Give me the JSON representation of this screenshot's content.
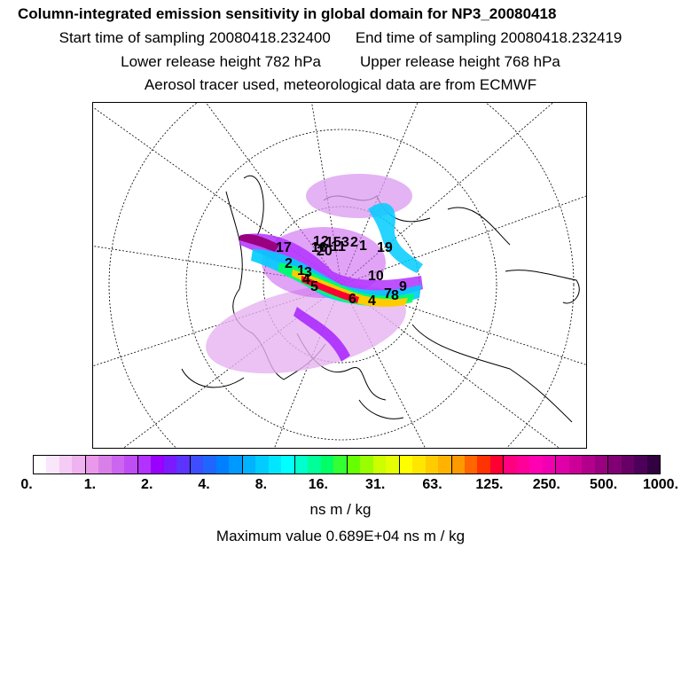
{
  "title": "Column-integrated emission sensitivity in global domain for NP3_20080418",
  "sampling": {
    "start": "Start time of sampling 20080418.232400",
    "end": "End time of sampling 20080418.232419"
  },
  "release": {
    "lower": "Lower release height  782 hPa",
    "upper": "Upper release height  768 hPa"
  },
  "note": "Aerosol tracer used, meteorological data are from ECMWF",
  "map": {
    "labels": [
      "12",
      "20",
      "15",
      "3",
      "2",
      "1",
      "17",
      "2",
      "1",
      "3",
      "4",
      "5",
      "6",
      "4",
      "7",
      "8",
      "9",
      "10",
      "11",
      "16",
      "19"
    ]
  },
  "colorbar": {
    "colors": [
      "#ffffff",
      "#fae6fa",
      "#f5ccf5",
      "#efb3ef",
      "#e999e9",
      "#d980e8",
      "#cc66f0",
      "#bf4df5",
      "#b233ff",
      "#9900ff",
      "#7a1aff",
      "#5c33ff",
      "#3d4dff",
      "#1f66ff",
      "#0080ff",
      "#0099ff",
      "#00b3ff",
      "#00ccff",
      "#00e6ff",
      "#00ffff",
      "#00ffcc",
      "#00ff99",
      "#00ff66",
      "#33ff33",
      "#66ff00",
      "#99ff00",
      "#ccff00",
      "#e6ff00",
      "#ffff00",
      "#ffe600",
      "#ffcc00",
      "#ffb300",
      "#ff9900",
      "#ff6600",
      "#ff3300",
      "#ff0033",
      "#ff0080",
      "#ff0099",
      "#ff00b3",
      "#f000b0",
      "#e000a8",
      "#cc0099",
      "#b3008c",
      "#990080",
      "#800073",
      "#660066",
      "#4d0059",
      "#330040"
    ],
    "major_every": 4,
    "tick_labels": [
      "0.",
      "1.",
      "2.",
      "4.",
      "8.",
      "16.",
      "31.",
      "63.",
      "125.",
      "250.",
      "500.",
      "1000."
    ],
    "units": "ns m / kg"
  },
  "max_value": "Maximum value  0.689E+04 ns m / kg"
}
